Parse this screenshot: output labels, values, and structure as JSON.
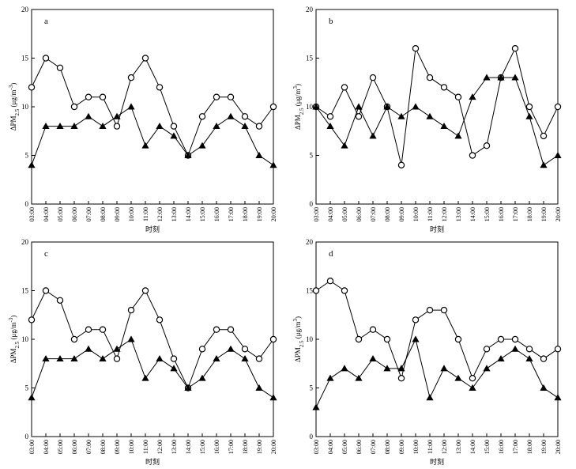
{
  "chart_data": [
    {
      "type": "line",
      "panel_label": "a",
      "ylabel": "ΔPM2.5 (μg/m³)",
      "ylabel_main": "ΔPM",
      "ylabel_sub": "2.5",
      "ylabel_unit": " (μg/m",
      "ylabel_sup": "-3",
      "ylabel_close": ")",
      "xlabel": "时刻",
      "ylim": [
        0,
        20
      ],
      "yticks": [
        "0",
        "5",
        "10",
        "15",
        "20"
      ],
      "categories": [
        "03:00",
        "04:00",
        "05:00",
        "06:00",
        "07:00",
        "08:00",
        "09:00",
        "10:00",
        "11:00",
        "12:00",
        "13:00",
        "14:00",
        "15:00",
        "16:00",
        "17:00",
        "18:00",
        "19:00",
        "20:00"
      ],
      "series": [
        {
          "marker": "circle",
          "values": [
            12,
            15,
            14,
            10,
            11,
            11,
            8,
            13,
            15,
            12,
            8,
            5,
            9,
            11,
            11,
            9,
            8,
            10
          ]
        },
        {
          "marker": "triangle",
          "values": [
            4,
            8,
            8,
            8,
            9,
            8,
            9,
            10,
            6,
            8,
            7,
            5,
            6,
            8,
            9,
            8,
            5,
            4
          ]
        }
      ]
    },
    {
      "type": "line",
      "panel_label": "b",
      "ylabel": "ΔPM2.5 (μg/m³)",
      "ylabel_main": "ΔPM",
      "ylabel_sub": "2.5",
      "ylabel_unit": " (μg/m",
      "ylabel_sup": "3",
      "ylabel_close": ")",
      "xlabel": "时刻",
      "ylim": [
        0,
        20
      ],
      "yticks": [
        "0",
        "5",
        "10",
        "15",
        "20"
      ],
      "categories": [
        "03:00",
        "04:00",
        "05:00",
        "06:00",
        "07:00",
        "08:00",
        "09:00",
        "10:00",
        "11:00",
        "12:00",
        "13:00",
        "14:00",
        "15:00",
        "16:00",
        "17:00",
        "18:00",
        "19:00",
        "20:00"
      ],
      "series": [
        {
          "marker": "circle",
          "values": [
            10,
            9,
            12,
            9,
            13,
            10,
            4,
            16,
            13,
            12,
            11,
            5,
            6,
            13,
            16,
            10,
            7,
            10
          ]
        },
        {
          "marker": "triangle",
          "values": [
            10,
            8,
            6,
            10,
            7,
            10,
            9,
            10,
            9,
            8,
            7,
            11,
            13,
            13,
            13,
            9,
            4,
            5
          ]
        }
      ]
    },
    {
      "type": "line",
      "panel_label": "c",
      "ylabel": "ΔPM2.5 (μg/m³)",
      "ylabel_main": "ΔPM",
      "ylabel_sub": "2.5",
      "ylabel_unit": " (μg/m",
      "ylabel_sup": "-3",
      "ylabel_close": ")",
      "xlabel": "时刻",
      "ylim": [
        0,
        20
      ],
      "yticks": [
        "0",
        "5",
        "10",
        "15",
        "20"
      ],
      "categories": [
        "03:00",
        "04:00",
        "05:00",
        "06:00",
        "07:00",
        "08:00",
        "09:00",
        "10:00",
        "11:00",
        "12:00",
        "13:00",
        "14:00",
        "15:00",
        "16:00",
        "17:00",
        "18:00",
        "19:00",
        "20:00"
      ],
      "series": [
        {
          "marker": "circle",
          "values": [
            12,
            15,
            14,
            10,
            11,
            11,
            8,
            13,
            15,
            12,
            8,
            5,
            9,
            11,
            11,
            9,
            8,
            10
          ]
        },
        {
          "marker": "triangle",
          "values": [
            4,
            8,
            8,
            8,
            9,
            8,
            9,
            10,
            6,
            8,
            7,
            5,
            6,
            8,
            9,
            8,
            5,
            4
          ]
        }
      ]
    },
    {
      "type": "line",
      "panel_label": "d",
      "ylabel": "ΔPM2.5 (μg/m³)",
      "ylabel_main": "ΔPM",
      "ylabel_sub": "2.5",
      "ylabel_unit": " (μg/m",
      "ylabel_sup": "3",
      "ylabel_close": ")",
      "xlabel": "时刻",
      "ylim": [
        0,
        20
      ],
      "yticks": [
        "0",
        "5",
        "10",
        "15",
        "20"
      ],
      "categories": [
        "03:00",
        "04:00",
        "05:00",
        "06:00",
        "07:00",
        "08:00",
        "09:00",
        "10:00",
        "11:00",
        "12:00",
        "13:00",
        "14:00",
        "15:00",
        "16:00",
        "17:00",
        "18:00",
        "19:00",
        "20:00"
      ],
      "series": [
        {
          "marker": "circle",
          "values": [
            15,
            16,
            15,
            10,
            11,
            10,
            6,
            12,
            13,
            13,
            10,
            6,
            9,
            10,
            10,
            9,
            8,
            9
          ]
        },
        {
          "marker": "triangle",
          "values": [
            3,
            6,
            7,
            6,
            8,
            7,
            7,
            10,
            4,
            7,
            6,
            5,
            7,
            8,
            9,
            8,
            5,
            4
          ]
        }
      ]
    }
  ]
}
